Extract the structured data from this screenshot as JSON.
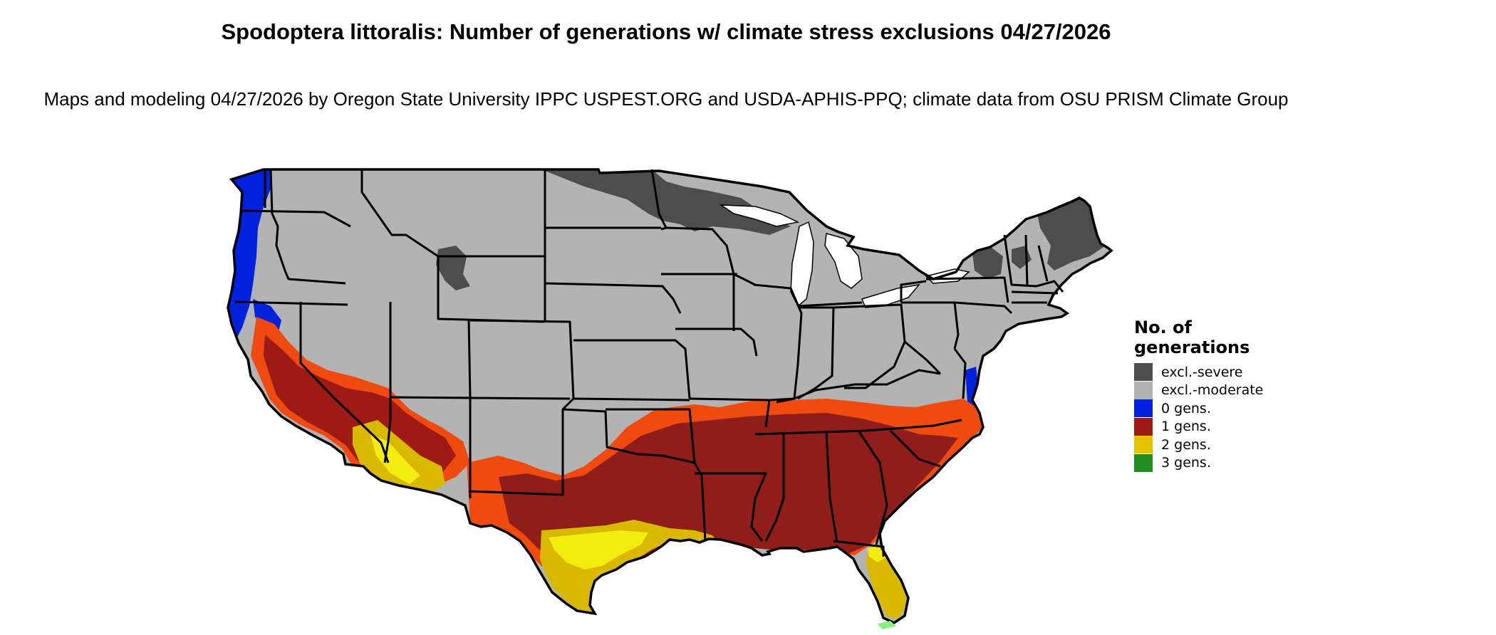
{
  "title": "Spodoptera littoralis: Number of generations w/ climate stress exclusions 04/27/2026",
  "subtitle": "Maps and modeling 04/27/2026 by Oregon State University IPPC USPEST.ORG and USDA-APHIS-PPQ; climate data from OSU PRISM Climate Group",
  "legend": {
    "title": "No. of generations",
    "items": [
      {
        "label": "excl.-severe",
        "color": "#4d4d4d"
      },
      {
        "label": "excl.-moderate",
        "color": "#b3b3b3"
      },
      {
        "label": "0 gens.",
        "color": "#0022dd"
      },
      {
        "label": "1 gens.",
        "color": "#9e1a14"
      },
      {
        "label": "2 gens.",
        "color": "#e6c300"
      },
      {
        "label": "3 gens.",
        "color": "#228b22"
      }
    ]
  },
  "map": {
    "region": "Contiguous United States",
    "colors": {
      "excl_severe": "#4d4d4d",
      "excl_moderate": "#b3b3b3",
      "gens_0": "#0022dd",
      "gens_1": "#8f1d1a",
      "gens_1_edge": "#ef4a10",
      "gens_2": "#d9b800",
      "gens_2_light": "#f2ec10",
      "gens_3_trace": "#88ee88",
      "border": "#000000",
      "water": "#ffffff"
    }
  }
}
